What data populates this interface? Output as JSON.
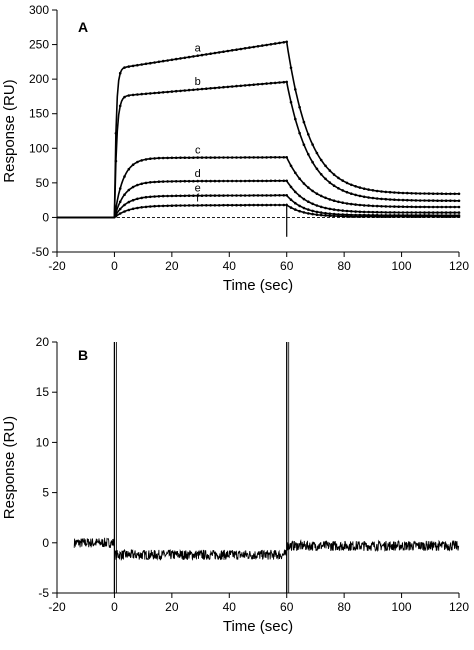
{
  "chart_data": [
    {
      "panel": "A",
      "type": "line",
      "xlabel": "Time (sec)",
      "ylabel": "Response (RU)",
      "xlim": [
        -20,
        120
      ],
      "ylim": [
        -50,
        300
      ],
      "xticks": [
        -20,
        0,
        20,
        40,
        60,
        80,
        100,
        120
      ],
      "yticks": [
        -50,
        0,
        50,
        100,
        150,
        200,
        250,
        300
      ],
      "baseline": 0,
      "series": [
        {
          "name": "a",
          "assoc_start": 215,
          "assoc_end": 254,
          "dissoc_end": 34,
          "tau_on": 0.6,
          "tau_off": 8
        },
        {
          "name": "b",
          "assoc_start": 175,
          "assoc_end": 196,
          "dissoc_end": 24,
          "tau_on": 0.8,
          "tau_off": 8
        },
        {
          "name": "c",
          "assoc_start": 86,
          "assoc_end": 87,
          "dissoc_end": 15,
          "tau_on": 3,
          "tau_off": 8
        },
        {
          "name": "d",
          "assoc_start": 52,
          "assoc_end": 53,
          "dissoc_end": 7,
          "tau_on": 3.5,
          "tau_off": 7
        },
        {
          "name": "e",
          "assoc_start": 31,
          "assoc_end": 32,
          "dissoc_end": 3,
          "tau_on": 4,
          "tau_off": 6
        },
        {
          "name": "f",
          "assoc_start": 17,
          "assoc_end": 18,
          "dissoc_end": 1,
          "tau_on": 5,
          "tau_off": 6
        }
      ]
    },
    {
      "panel": "B",
      "type": "line",
      "xlabel": "Time (sec)",
      "ylabel": "Response (RU)",
      "xlim": [
        -20,
        120
      ],
      "ylim": [
        -5,
        20
      ],
      "xticks": [
        -20,
        0,
        20,
        40,
        60,
        80,
        100,
        120
      ],
      "yticks": [
        -5,
        0,
        5,
        10,
        15,
        20
      ],
      "segments": [
        {
          "x": [
            -14,
            0
          ],
          "y": 0
        },
        {
          "x": [
            0,
            60
          ],
          "y": -1.2
        },
        {
          "x": [
            60,
            120
          ],
          "y": -0.3
        }
      ],
      "spikes": [
        0,
        60
      ]
    }
  ]
}
